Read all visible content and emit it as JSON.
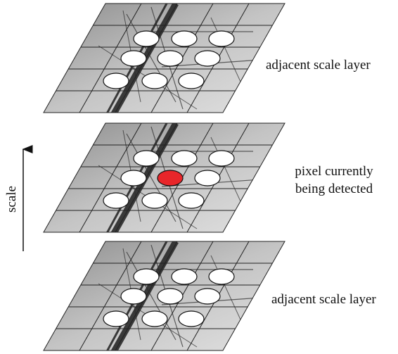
{
  "layers": [
    {
      "label": "adjacent scale layer"
    },
    {
      "label_lines": [
        "pixel currently",
        "being detected"
      ]
    },
    {
      "label": "adjacent scale layer"
    }
  ],
  "axis": {
    "label": "scale"
  }
}
